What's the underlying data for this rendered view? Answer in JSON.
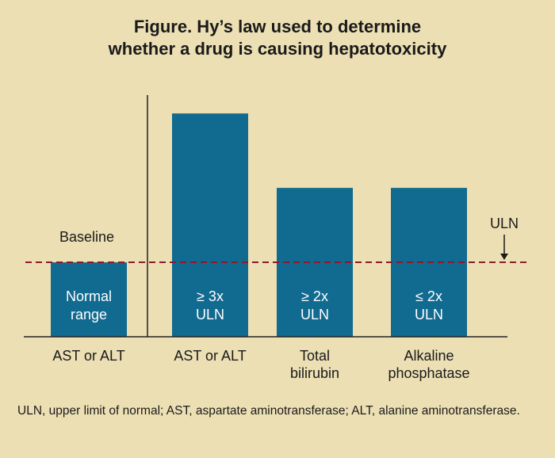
{
  "title_line1": "Figure. Hy’s law used to determine",
  "title_line2": "whether a drug is causing hepatotoxicity",
  "footnote": "ULN, upper limit of normal; AST, aspartate aminotransferase; ALT, alanine aminotransferase.",
  "chart_data": {
    "type": "bar",
    "title": "Figure. Hy’s law used to determine whether a drug is causing hepatotoxicity",
    "categories": [
      [
        "AST or ALT"
      ],
      [
        "AST or ALT"
      ],
      [
        "Total",
        "bilirubin"
      ],
      [
        "Alkaline",
        "phosphatase"
      ]
    ],
    "values": [
      1,
      3,
      2,
      2
    ],
    "bar_labels": [
      [
        "Normal",
        "range"
      ],
      [
        "≥ 3x",
        "ULN"
      ],
      [
        "≥ 2x",
        "ULN"
      ],
      [
        "≤ 2x",
        "ULN"
      ]
    ],
    "unit": "ULN",
    "ylim": [
      0,
      3.3
    ],
    "baseline_label": "Baseline",
    "reference_line": {
      "value": 1,
      "label": "ULN",
      "style": "dashed"
    },
    "colors": {
      "bar": "#116a8f",
      "bar_text": "#ffffff",
      "reference_line": "#8b1a2b",
      "background": "#ecdfb4",
      "axis": "#222222"
    },
    "grid": false,
    "legend": "none"
  }
}
